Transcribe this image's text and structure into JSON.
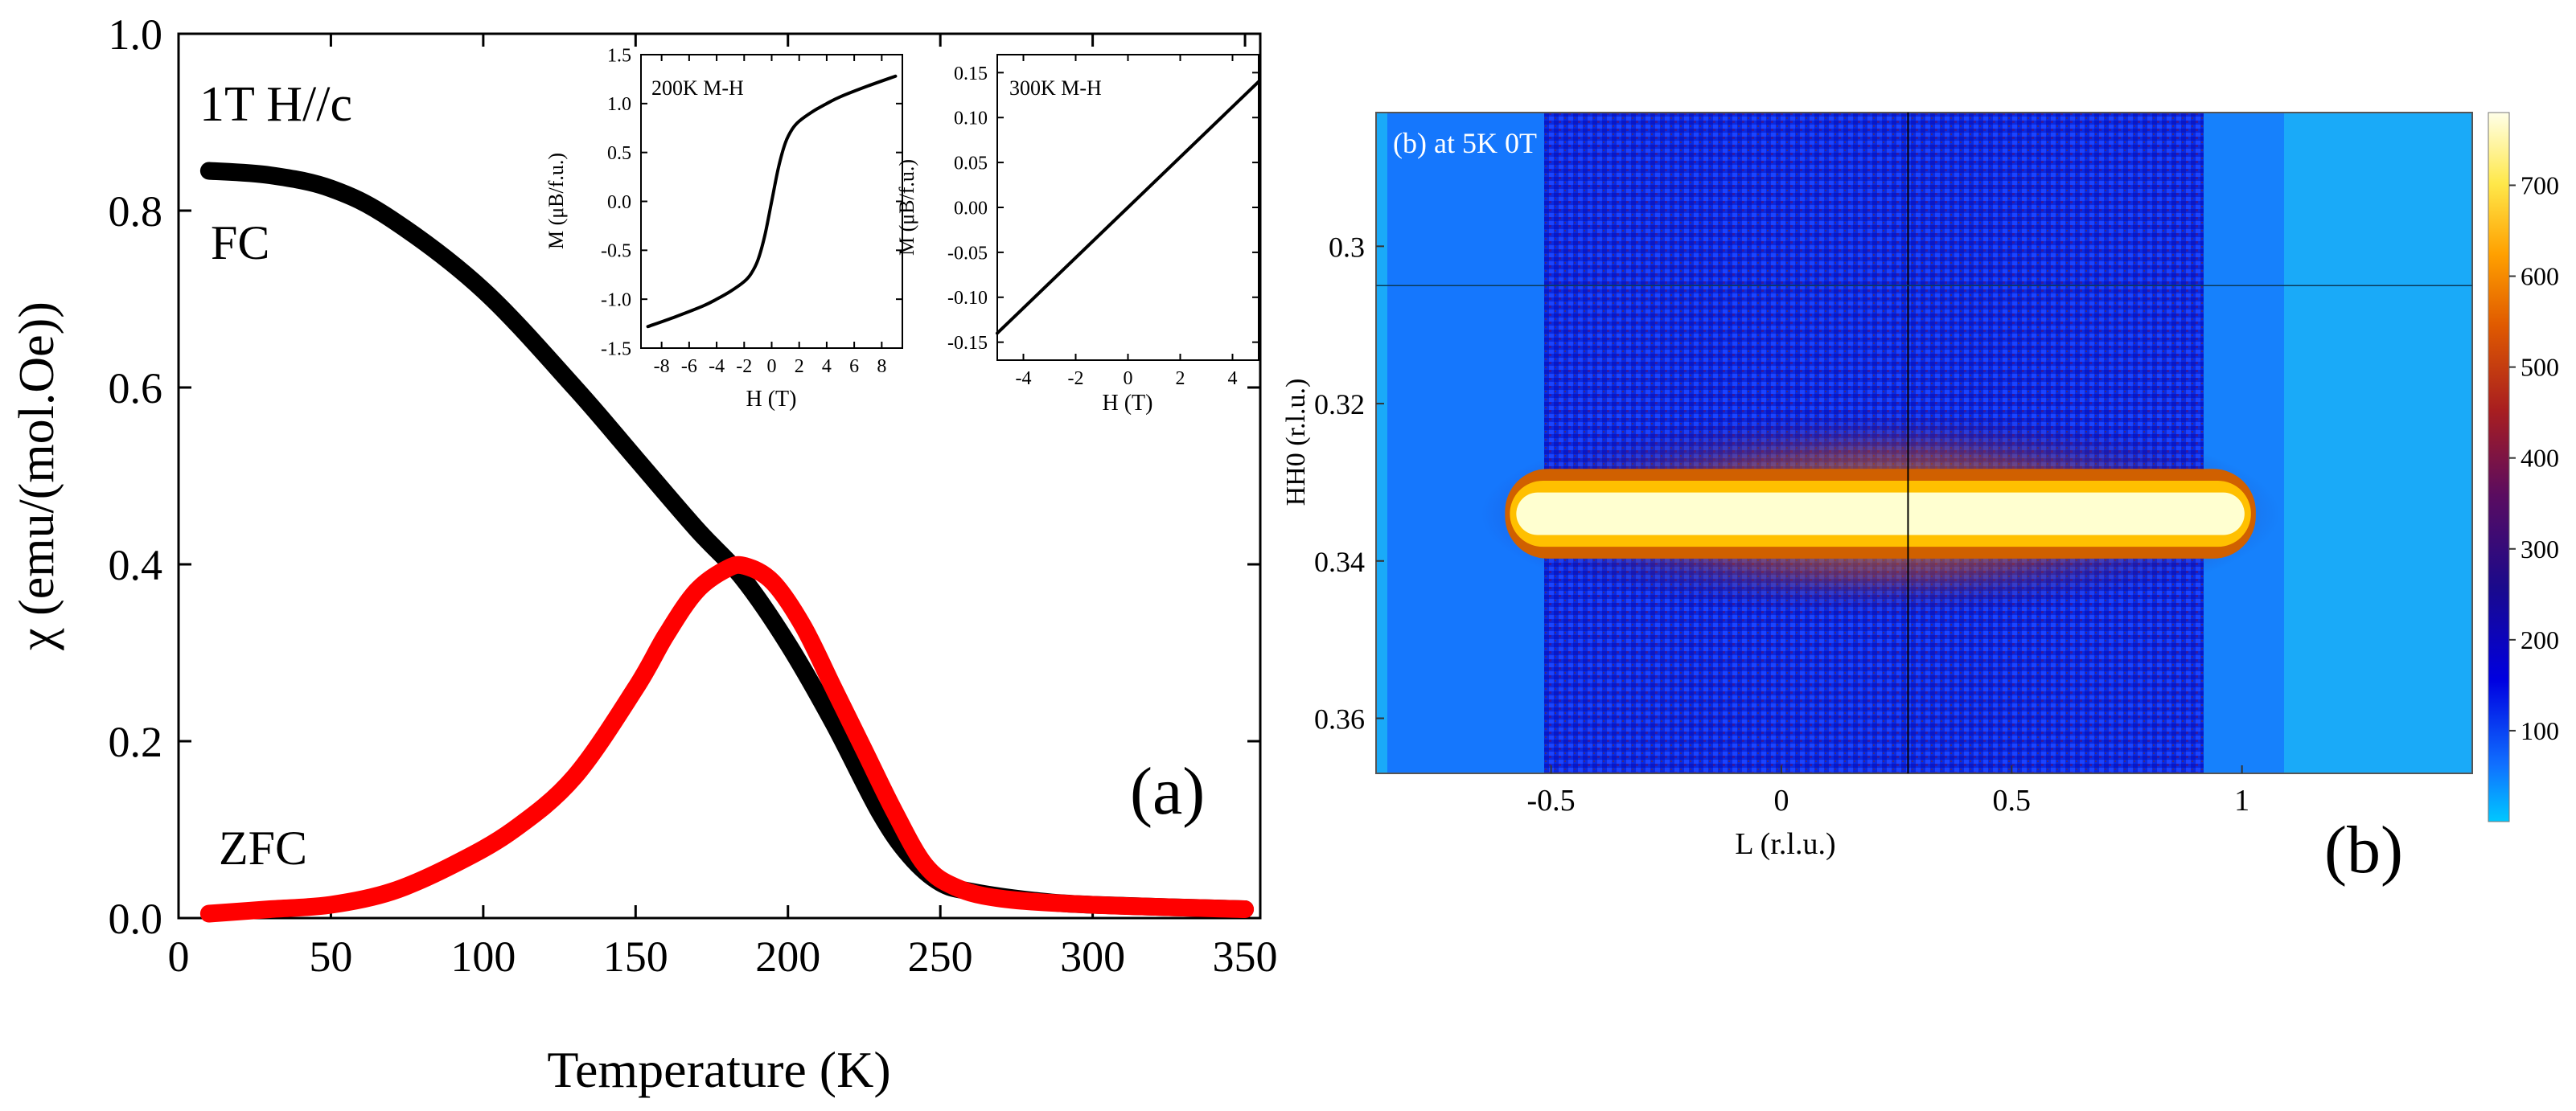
{
  "chart_data": [
    {
      "id": "main",
      "type": "line",
      "panel_label": "(a)",
      "annotation": "1T  H//c",
      "xlabel": "Temperature (K)",
      "ylabel": "χ (emu/(mol.Oe))",
      "xlim": [
        0,
        355
      ],
      "ylim": [
        0,
        1.0
      ],
      "x_ticks": [
        0,
        50,
        100,
        150,
        200,
        250,
        300,
        350
      ],
      "y_ticks": [
        0.0,
        0.2,
        0.4,
        0.6,
        0.8,
        1.0
      ],
      "x_tick_labels": [
        "0",
        "50",
        "100",
        "150",
        "200",
        "250",
        "300",
        "350"
      ],
      "y_tick_labels": [
        "0.0",
        "0.2",
        "0.4",
        "0.6",
        "0.8",
        "1.0"
      ],
      "series": [
        {
          "name": "FC",
          "color": "#000000",
          "x": [
            10,
            30,
            50,
            70,
            100,
            130,
            150,
            170,
            185,
            200,
            215,
            230,
            240,
            250,
            260,
            280,
            300,
            350
          ],
          "y": [
            0.845,
            0.84,
            0.825,
            0.79,
            0.71,
            0.6,
            0.52,
            0.44,
            0.385,
            0.31,
            0.22,
            0.12,
            0.07,
            0.04,
            0.03,
            0.02,
            0.015,
            0.01
          ]
        },
        {
          "name": "ZFC",
          "color": "#ff0000",
          "x": [
            10,
            30,
            50,
            70,
            90,
            110,
            130,
            150,
            160,
            170,
            180,
            186,
            195,
            205,
            215,
            225,
            235,
            245,
            255,
            270,
            300,
            350
          ],
          "y": [
            0.005,
            0.01,
            0.015,
            0.03,
            0.06,
            0.1,
            0.16,
            0.26,
            0.32,
            0.37,
            0.395,
            0.398,
            0.38,
            0.33,
            0.26,
            0.19,
            0.12,
            0.06,
            0.035,
            0.022,
            0.015,
            0.01
          ]
        }
      ]
    },
    {
      "id": "inset1",
      "type": "line",
      "title": "200K M-H",
      "xlabel": "H (T)",
      "ylabel": "M (μB/f.u.)",
      "xlim": [
        -9.5,
        9.5
      ],
      "ylim": [
        -1.5,
        1.5
      ],
      "x_ticks": [
        -8,
        -6,
        -4,
        -2,
        0,
        2,
        4,
        6,
        8
      ],
      "y_ticks": [
        -1.5,
        -1.0,
        -0.5,
        0.0,
        0.5,
        1.0,
        1.5
      ],
      "x_tick_labels": [
        "-8",
        "-6",
        "-4",
        "-2",
        "0",
        "2",
        "4",
        "6",
        "8"
      ],
      "y_tick_labels": [
        "-1.5",
        "-1.0",
        "-0.5",
        "0.0",
        "0.5",
        "1.0",
        "1.5"
      ],
      "series": [
        {
          "name": "M-H 200K",
          "color": "#000000",
          "x": [
            -9,
            -7,
            -5,
            -4,
            -3,
            -2,
            -1.5,
            -1,
            -0.5,
            0,
            0.5,
            1,
            1.5,
            2,
            3,
            4,
            5,
            7,
            9
          ],
          "y": [
            -1.28,
            -1.18,
            -1.07,
            -1.0,
            -0.92,
            -0.82,
            -0.74,
            -0.6,
            -0.35,
            0,
            0.35,
            0.6,
            0.74,
            0.82,
            0.92,
            1.0,
            1.07,
            1.18,
            1.28
          ]
        }
      ]
    },
    {
      "id": "inset2",
      "type": "line",
      "title": "300K M-H",
      "xlabel": "H (T)",
      "ylabel": "M (μB/f.u.)",
      "xlim": [
        -5,
        5
      ],
      "ylim": [
        -0.17,
        0.17
      ],
      "x_ticks": [
        -4,
        -2,
        0,
        2,
        4
      ],
      "y_ticks": [
        -0.15,
        -0.1,
        -0.05,
        0.0,
        0.05,
        0.1,
        0.15
      ],
      "x_tick_labels": [
        "-4",
        "-2",
        "0",
        "2",
        "4"
      ],
      "y_tick_labels": [
        "-0.15",
        "-0.10",
        "-0.05",
        "0.00",
        "0.05",
        "0.10",
        "0.15"
      ],
      "series": [
        {
          "name": "M-H 300K",
          "color": "#000000",
          "x": [
            -5,
            5
          ],
          "y": [
            -0.14,
            0.14
          ]
        }
      ]
    },
    {
      "id": "heatmap",
      "type": "heatmap",
      "panel_label": "(b)",
      "title": "(b) at 5K 0T",
      "xlabel": "L (r.l.u.)",
      "ylabel": "HH0 (r.l.u.)",
      "xlim": [
        -0.88,
        1.5
      ],
      "ylim": [
        0.283,
        0.367
      ],
      "y_inverted": true,
      "x_ticks": [
        -0.5,
        0,
        0.5,
        1
      ],
      "y_ticks": [
        0.3,
        0.32,
        0.34,
        0.36
      ],
      "x_tick_labels": [
        "-0.5",
        "0",
        "0.5",
        "1"
      ],
      "y_tick_labels": [
        "0.3",
        "0.32",
        "0.34",
        "0.36"
      ],
      "colorbar": {
        "range": [
          0,
          780
        ],
        "ticks": [
          100,
          200,
          300,
          400,
          500,
          600,
          700
        ],
        "tick_labels": [
          "100",
          "200",
          "300",
          "400",
          "500",
          "600",
          "700"
        ]
      },
      "feature": {
        "description": "intense horizontal streak",
        "l_range": [
          -0.6,
          1.03
        ],
        "hh0_center": 0.334,
        "hh0_width": 0.006
      },
      "cursor_lines": {
        "l": 0.275,
        "hh0": 0.305
      }
    }
  ]
}
